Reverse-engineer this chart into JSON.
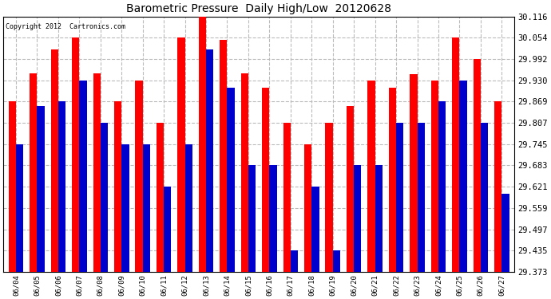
{
  "title": "Barometric Pressure  Daily High/Low  20120628",
  "copyright": "Copyright 2012  Cartronics.com",
  "categories": [
    "06/04",
    "06/05",
    "06/06",
    "06/07",
    "06/08",
    "06/09",
    "06/10",
    "06/11",
    "06/12",
    "06/13",
    "06/14",
    "06/15",
    "06/16",
    "06/17",
    "06/18",
    "06/19",
    "06/20",
    "06/21",
    "06/22",
    "06/23",
    "06/24",
    "06/25",
    "06/26",
    "06/27"
  ],
  "highs": [
    29.869,
    29.951,
    30.02,
    30.054,
    29.951,
    29.869,
    29.93,
    29.807,
    30.054,
    30.116,
    30.048,
    29.951,
    29.91,
    29.807,
    29.745,
    29.807,
    29.855,
    29.93,
    29.91,
    29.948,
    29.93,
    30.054,
    29.992,
    29.869
  ],
  "lows": [
    29.745,
    29.855,
    29.869,
    29.93,
    29.807,
    29.745,
    29.745,
    29.621,
    29.745,
    30.02,
    29.91,
    29.683,
    29.683,
    29.435,
    29.621,
    29.435,
    29.683,
    29.683,
    29.807,
    29.807,
    29.869,
    29.93,
    29.807,
    29.6
  ],
  "high_color": "#ff0000",
  "low_color": "#0000cc",
  "background_color": "#ffffff",
  "grid_color": "#bbbbbb",
  "ymin": 29.373,
  "ymax": 30.116,
  "yticks": [
    29.373,
    29.435,
    29.497,
    29.559,
    29.621,
    29.683,
    29.745,
    29.807,
    29.869,
    29.93,
    29.992,
    30.054,
    30.116
  ],
  "bar_width": 0.35,
  "figwidth": 6.9,
  "figheight": 3.75,
  "dpi": 100
}
